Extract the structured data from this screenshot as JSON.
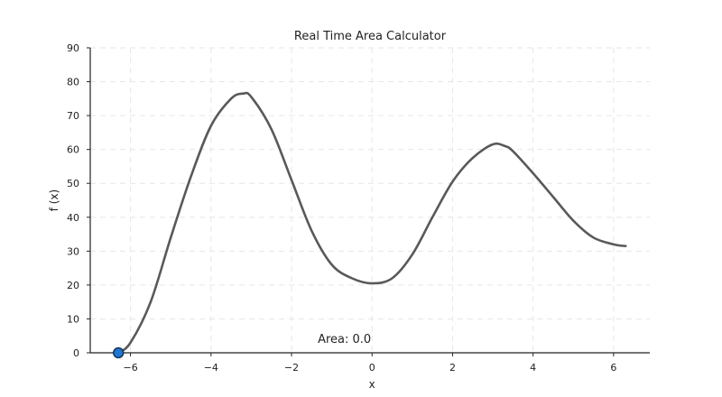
{
  "chart_data": {
    "type": "line",
    "title": "Real Time Area Calculator",
    "xlabel": "x",
    "ylabel": "f (x)",
    "xlim": [
      -7.0,
      6.9
    ],
    "ylim": [
      0,
      90
    ],
    "x_ticks": [
      -6,
      -4,
      -2,
      0,
      2,
      4,
      6
    ],
    "x_tick_labels": [
      "−6",
      "−4",
      "−2",
      "0",
      "2",
      "4",
      "6"
    ],
    "y_ticks": [
      0,
      10,
      20,
      30,
      40,
      50,
      60,
      70,
      80,
      90
    ],
    "y_tick_labels": [
      "0",
      "10",
      "20",
      "30",
      "40",
      "50",
      "60",
      "70",
      "80",
      "90"
    ],
    "grid": true,
    "series": [
      {
        "color": "#595959",
        "x": [
          -6.3,
          -6.0,
          -5.5,
          -5.0,
          -4.5,
          -4.0,
          -3.5,
          -3.2,
          -3.0,
          -2.5,
          -2.0,
          -1.5,
          -1.0,
          -0.5,
          0.0,
          0.5,
          1.0,
          1.5,
          2.0,
          2.5,
          3.0,
          3.3,
          3.5,
          4.0,
          4.5,
          5.0,
          5.5,
          6.0,
          6.3
        ],
        "y": [
          0.0,
          3.0,
          15.0,
          34.0,
          52.0,
          67.0,
          75.0,
          76.5,
          75.5,
          66.0,
          51.0,
          36.0,
          26.0,
          22.0,
          20.5,
          22.0,
          29.0,
          40.0,
          50.5,
          57.5,
          61.5,
          61.0,
          59.5,
          53.0,
          46.0,
          39.0,
          34.0,
          32.0,
          31.5
        ]
      }
    ],
    "marker": {
      "x": -6.3,
      "y": 0.0,
      "color": "#1f77d0"
    },
    "annotation": {
      "text": "Area: 0.0",
      "x": -1.0,
      "y": 5.0
    }
  }
}
